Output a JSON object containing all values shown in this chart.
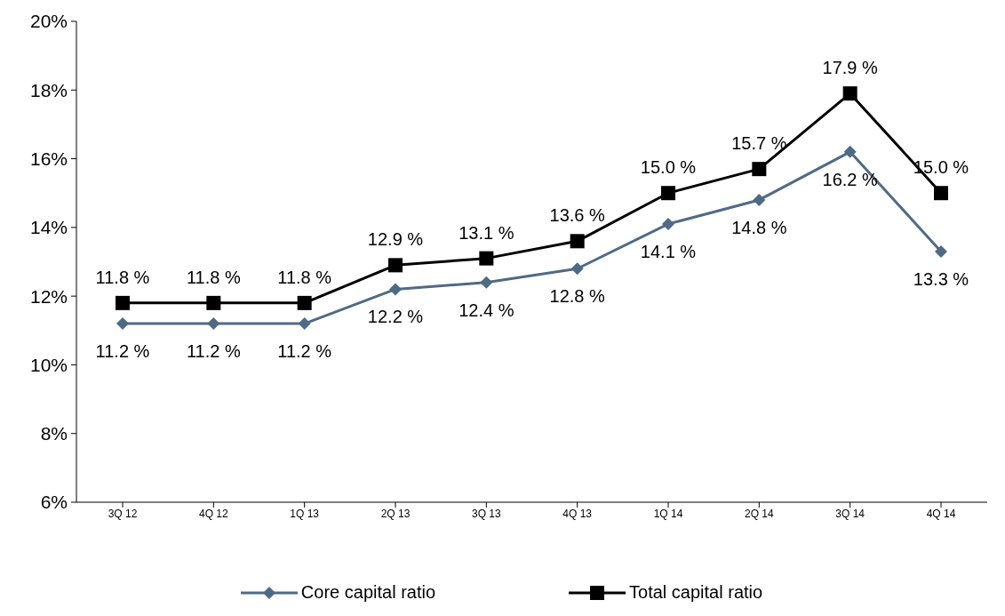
{
  "chart_data": {
    "type": "line",
    "categories": [
      "3Q 12",
      "4Q 12",
      "1Q 13",
      "2Q 13",
      "3Q 13",
      "4Q 13",
      "1Q 14",
      "2Q 14",
      "3Q 14",
      "4Q 14"
    ],
    "series": [
      {
        "name": "Core capital ratio",
        "color": "#4f6a84",
        "marker": "diamond",
        "values": [
          11.2,
          11.2,
          11.2,
          12.2,
          12.4,
          12.8,
          14.1,
          14.8,
          16.2,
          13.3
        ],
        "value_labels": [
          "11.2 %",
          "11.2 %",
          "11.2 %",
          "12.2 %",
          "12.4 %",
          "12.8 %",
          "14.1 %",
          "14.8 %",
          "16.2 %",
          "13.3 %"
        ]
      },
      {
        "name": "Total capital ratio",
        "color": "#000000",
        "marker": "square",
        "values": [
          11.8,
          11.8,
          11.8,
          12.9,
          13.1,
          13.6,
          15.0,
          15.7,
          17.9,
          15.0
        ],
        "value_labels": [
          "11.8 %",
          "11.8 %",
          "11.8 %",
          "12.9 %",
          "13.1 %",
          "13.6 %",
          "15.0 %",
          "15.7 %",
          "17.9 %",
          "15.0 %"
        ]
      }
    ],
    "ylim": [
      6,
      20
    ],
    "yticks": [
      {
        "value": 6,
        "label": "6%"
      },
      {
        "value": 8,
        "label": "8%"
      },
      {
        "value": 10,
        "label": "10%"
      },
      {
        "value": 12,
        "label": "12%"
      },
      {
        "value": 14,
        "label": "14%"
      },
      {
        "value": 16,
        "label": "16%"
      },
      {
        "value": 18,
        "label": "18%"
      },
      {
        "value": 20,
        "label": "20%"
      }
    ],
    "grid": false,
    "legend": "bottom",
    "line_style": "solid"
  }
}
